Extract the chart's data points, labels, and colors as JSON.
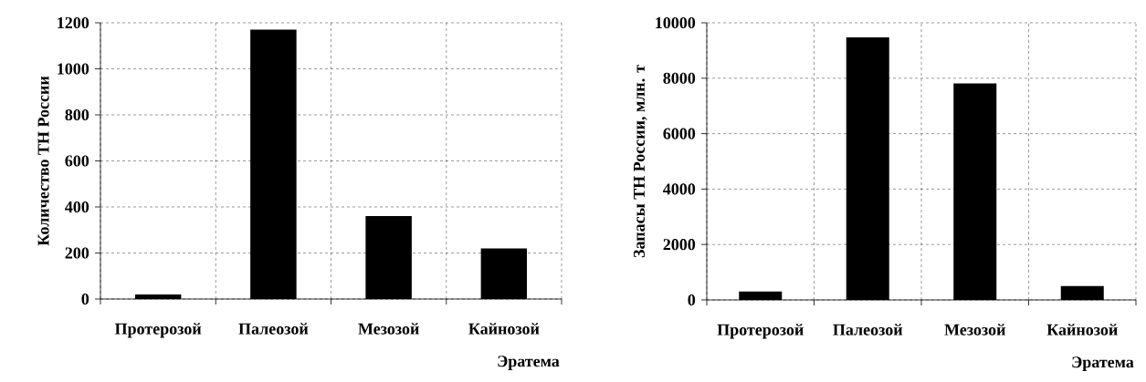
{
  "chart_data": [
    {
      "type": "bar",
      "categories": [
        "Протерозой",
        "Палеозой",
        "Мезозой",
        "Кайнозой"
      ],
      "values": [
        20,
        1170,
        360,
        220
      ],
      "color": "#000000",
      "ylim": [
        0,
        1200
      ],
      "yticks": [
        0,
        200,
        400,
        600,
        800,
        1000,
        1200
      ],
      "ylabel": "Количество ТН России",
      "xlabel": "Эратема",
      "grid": true
    },
    {
      "type": "bar",
      "categories": [
        "Протерозой",
        "Палеозой",
        "Мезозой",
        "Кайнозой"
      ],
      "values": [
        300,
        9470,
        7810,
        500
      ],
      "color": "#000000",
      "ylim": [
        0,
        10000
      ],
      "yticks": [
        0,
        2000,
        4000,
        6000,
        8000,
        10000
      ],
      "ylabel": "Запасы ТН России, млн. т",
      "xlabel": "Эратема",
      "grid": true
    }
  ]
}
